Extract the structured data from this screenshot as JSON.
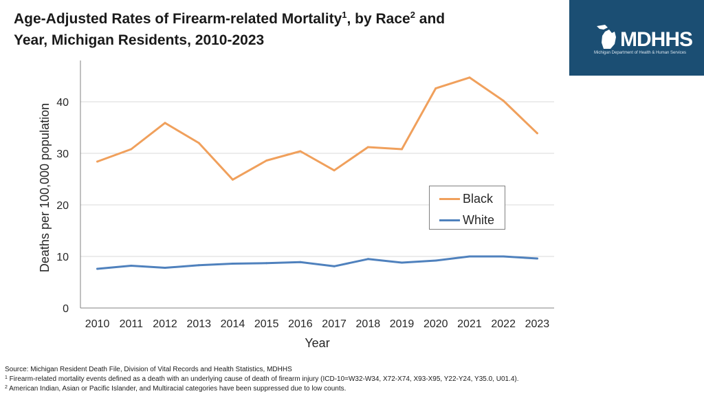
{
  "header": {
    "title_part1": "Age-Adjusted Rates of Firearm-related Mortality",
    "title_sup1": "1",
    "title_part2": ", by Race",
    "title_sup2": "2",
    "title_part3": " and",
    "title_line2": "Year, Michigan Residents, 2010-2023"
  },
  "logo": {
    "text": "MDHHS",
    "subtext": "Michigan Department of Health & Human Services",
    "bg_color": "#1b4e73"
  },
  "chart_data": {
    "type": "line",
    "xlabel": "Year",
    "ylabel": "Deaths per 100,000 population",
    "ylim": [
      0,
      48
    ],
    "yticks": [
      0,
      10,
      20,
      30,
      40
    ],
    "grid": true,
    "legend_position": "right",
    "categories": [
      "2010",
      "2011",
      "2012",
      "2013",
      "2014",
      "2015",
      "2016",
      "2017",
      "2018",
      "2019",
      "2020",
      "2021",
      "2022",
      "2023"
    ],
    "series": [
      {
        "name": "Black",
        "color": "#f0a05c",
        "values": [
          28.4,
          30.8,
          35.9,
          32.0,
          24.9,
          28.6,
          30.4,
          26.7,
          31.2,
          30.8,
          42.6,
          44.7,
          40.2,
          33.9
        ]
      },
      {
        "name": "White",
        "color": "#4f81bd",
        "values": [
          7.6,
          8.2,
          7.8,
          8.3,
          8.6,
          8.7,
          8.9,
          8.1,
          9.5,
          8.8,
          9.2,
          10.0,
          10.0,
          9.6
        ]
      }
    ]
  },
  "footnotes": {
    "source": "Source: Michigan Resident Death File, Division of Vital Records and Health Statistics, MDHHS",
    "note1_marker": "1",
    "note1": " Firearm-related mortality events defined as a death with an underlying cause of death of firearm injury (ICD-10=W32-W34, X72-X74, X93-X95, Y22-Y24, Y35.0, U01.4).",
    "note2_marker": "2",
    "note2": " American Indian, Asian or Pacific Islander, and Multiracial categories have been suppressed due to low counts."
  }
}
